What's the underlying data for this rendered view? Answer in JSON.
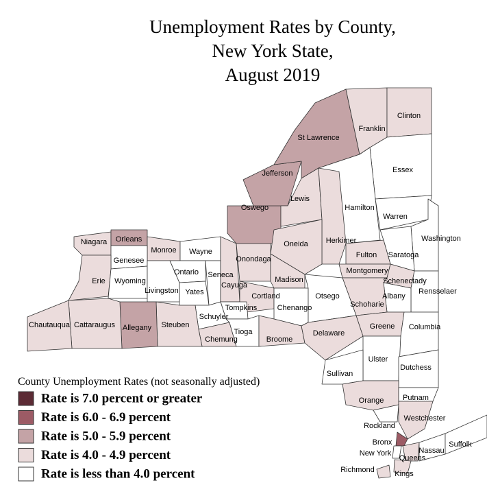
{
  "title": [
    "Unemployment Rates by County,",
    "New York State,",
    "August 2019"
  ],
  "legend": {
    "title": "County Unemployment Rates (not seasonally adjusted)",
    "items": [
      {
        "label": "Rate is 7.0 percent or greater",
        "color": "#5c2b35"
      },
      {
        "label": "Rate is 6.0 - 6.9 percent",
        "color": "#9c5b65"
      },
      {
        "label": "Rate is 5.0 - 5.9 percent",
        "color": "#c4a3a6"
      },
      {
        "label": "Rate is 4.0 - 4.9 percent",
        "color": "#ebdcdc"
      },
      {
        "label": "Rate is less than 4.0 percent",
        "color": "#ffffff"
      }
    ]
  },
  "counties": [
    {
      "name": "Niagara",
      "color": "#ebdcdc"
    },
    {
      "name": "Orleans",
      "color": "#c4a3a6"
    },
    {
      "name": "Monroe",
      "color": "#ebdcdc"
    },
    {
      "name": "Wayne",
      "color": "#ffffff"
    },
    {
      "name": "Genesee",
      "color": "#ffffff"
    },
    {
      "name": "Erie",
      "color": "#ebdcdc"
    },
    {
      "name": "Wyoming",
      "color": "#ffffff"
    },
    {
      "name": "Livingston",
      "color": "#ffffff"
    },
    {
      "name": "Ontario",
      "color": "#ffffff"
    },
    {
      "name": "Yates",
      "color": "#ffffff"
    },
    {
      "name": "Seneca",
      "color": "#ffffff"
    },
    {
      "name": "Cayuga",
      "color": "#ebdcdc"
    },
    {
      "name": "Onondaga",
      "color": "#ebdcdc"
    },
    {
      "name": "Oswego",
      "color": "#c4a3a6"
    },
    {
      "name": "Jefferson",
      "color": "#c4a3a6"
    },
    {
      "name": "St Lawrence",
      "color": "#c4a3a6"
    },
    {
      "name": "Franklin",
      "color": "#ebdcdc"
    },
    {
      "name": "Clinton",
      "color": "#ebdcdc"
    },
    {
      "name": "Essex",
      "color": "#ffffff"
    },
    {
      "name": "Hamilton",
      "color": "#ffffff"
    },
    {
      "name": "Lewis",
      "color": "#ebdcdc"
    },
    {
      "name": "Herkimer",
      "color": "#ebdcdc"
    },
    {
      "name": "Oneida",
      "color": "#ebdcdc"
    },
    {
      "name": "Warren",
      "color": "#ffffff"
    },
    {
      "name": "Washington",
      "color": "#ffffff"
    },
    {
      "name": "Saratoga",
      "color": "#ffffff"
    },
    {
      "name": "Fulton",
      "color": "#ebdcdc"
    },
    {
      "name": "Montgomery",
      "color": "#ebdcdc"
    },
    {
      "name": "Schenectady",
      "color": "#ebdcdc"
    },
    {
      "name": "Rensselaer",
      "color": "#ffffff"
    },
    {
      "name": "Albany",
      "color": "#ffffff"
    },
    {
      "name": "Schoharie",
      "color": "#ebdcdc"
    },
    {
      "name": "Madison",
      "color": "#ebdcdc"
    },
    {
      "name": "Cortland",
      "color": "#ebdcdc"
    },
    {
      "name": "Chenango",
      "color": "#ffffff"
    },
    {
      "name": "Otsego",
      "color": "#ffffff"
    },
    {
      "name": "Tompkins",
      "color": "#ffffff"
    },
    {
      "name": "Schuyler",
      "color": "#ffffff"
    },
    {
      "name": "Chemung",
      "color": "#ebdcdc"
    },
    {
      "name": "Tioga",
      "color": "#ffffff"
    },
    {
      "name": "Broome",
      "color": "#ebdcdc"
    },
    {
      "name": "Delaware",
      "color": "#ebdcdc"
    },
    {
      "name": "Greene",
      "color": "#ebdcdc"
    },
    {
      "name": "Columbia",
      "color": "#ffffff"
    },
    {
      "name": "Ulster",
      "color": "#ffffff"
    },
    {
      "name": "Dutchess",
      "color": "#ffffff"
    },
    {
      "name": "Sullivan",
      "color": "#ffffff"
    },
    {
      "name": "Orange",
      "color": "#ebdcdc"
    },
    {
      "name": "Putnam",
      "color": "#ffffff"
    },
    {
      "name": "Rockland",
      "color": "#ffffff"
    },
    {
      "name": "Westchester",
      "color": "#ebdcdc"
    },
    {
      "name": "Bronx",
      "color": "#9c5b65"
    },
    {
      "name": "New York",
      "color": "#ffffff"
    },
    {
      "name": "Queens",
      "color": "#ebdcdc"
    },
    {
      "name": "Kings",
      "color": "#ebdcdc"
    },
    {
      "name": "Richmond",
      "color": "#ebdcdc"
    },
    {
      "name": "Nassau",
      "color": "#ffffff"
    },
    {
      "name": "Suffolk",
      "color": "#ffffff"
    },
    {
      "name": "Steuben",
      "color": "#ebdcdc"
    },
    {
      "name": "Allegany",
      "color": "#c4a3a6"
    },
    {
      "name": "Cattaraugus",
      "color": "#ebdcdc"
    },
    {
      "name": "Chautauqua",
      "color": "#ebdcdc"
    }
  ]
}
